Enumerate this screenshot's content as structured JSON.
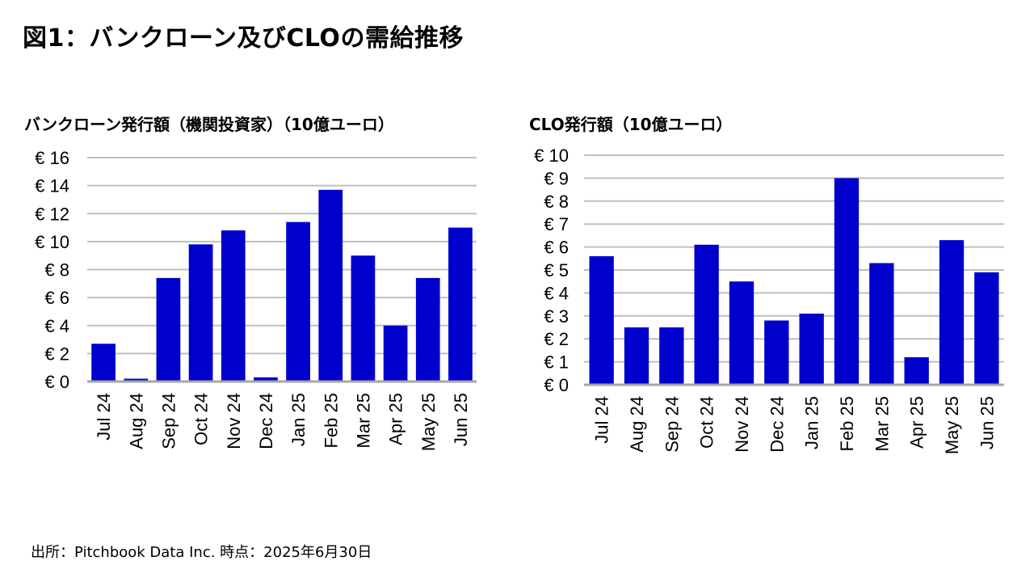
{
  "title": "図1：バンクローン及びCLOの需給推移",
  "source": "出所：Pitchbook Data Inc. 時点：2025年6月30日",
  "colors": {
    "bar": "#0000CC",
    "grid": "#BFBFBF",
    "axis": "#A6A6A6"
  },
  "chart_data": [
    {
      "type": "bar",
      "title": "バンクローン発行額（機関投資家）（10億ユーロ）",
      "categories": [
        "Jul 24",
        "Aug 24",
        "Sep 24",
        "Oct 24",
        "Nov 24",
        "Dec 24",
        "Jan 25",
        "Feb 25",
        "Mar 25",
        "Apr 25",
        "May 25",
        "Jun 25"
      ],
      "values": [
        2.7,
        0.2,
        7.4,
        9.8,
        10.8,
        0.3,
        11.4,
        13.7,
        9.0,
        4.0,
        7.4,
        11.0
      ],
      "ylim": [
        0,
        16
      ],
      "yticks": [
        0,
        2,
        4,
        6,
        8,
        10,
        12,
        14,
        16
      ],
      "ytick_labels": [
        "€ 0",
        "€ 2",
        "€ 4",
        "€ 6",
        "€ 8",
        "€ 10",
        "€ 12",
        "€ 14",
        "€ 16"
      ],
      "grid": true
    },
    {
      "type": "bar",
      "title": "CLO発行額（10億ユーロ）",
      "categories": [
        "Jul 24",
        "Aug 24",
        "Sep 24",
        "Oct 24",
        "Nov 24",
        "Dec 24",
        "Jan 25",
        "Feb 25",
        "Mar 25",
        "Apr 25",
        "May 25",
        "Jun 25"
      ],
      "values": [
        5.6,
        2.5,
        2.5,
        6.1,
        4.5,
        2.8,
        3.1,
        9.0,
        5.3,
        1.2,
        6.3,
        4.9
      ],
      "ylim": [
        0,
        10
      ],
      "yticks": [
        0,
        1,
        2,
        3,
        4,
        5,
        6,
        7,
        8,
        9,
        10
      ],
      "ytick_labels": [
        "€ 0",
        "€ 1",
        "€ 2",
        "€ 3",
        "€ 4",
        "€ 5",
        "€ 6",
        "€ 7",
        "€ 8",
        "€ 9",
        "€ 10"
      ],
      "grid": true
    }
  ]
}
